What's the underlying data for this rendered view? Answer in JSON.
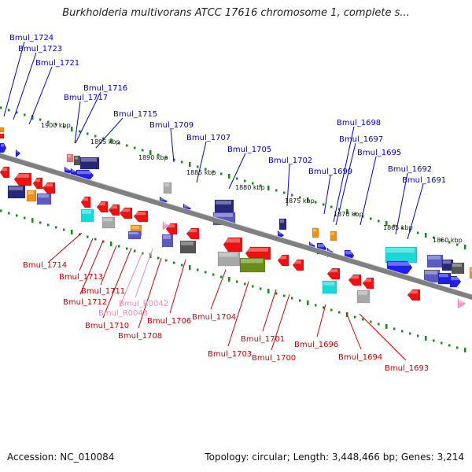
{
  "title": "Burkholderia multivorans ATCC 17616 chromosome 1, complete s...",
  "footer": {
    "accession_label": "Accession:",
    "accession_value": "NC_010084",
    "topology_label": "Topology:",
    "topology_value": "circular",
    "length_label": "Length:",
    "length_value": "3,448,466 bp",
    "genes_label": "Genes:",
    "genes_value": "3,214"
  },
  "colors": {
    "backbone": "#808080",
    "tick": "#1a8a1a",
    "forward_label": "#0000cc",
    "reverse_label": "#cc0000",
    "rna_label": "#e88ac0",
    "gene_blue": "#1f1fe6",
    "gene_red": "#ee1111",
    "gene_navy": "#28287a",
    "gene_slate": "#5a5ac0",
    "gene_cyan": "#18d8d8",
    "gene_orange": "#f09018",
    "gene_gray": "#a8a8a8",
    "gene_darkgray": "#555555",
    "gene_olive": "#6a8c1a",
    "gene_pink": "#ff99cc",
    "gene_pinkred": "#e07a7a"
  },
  "scale_labels": [
    "1900 kbp",
    "1895 kbp",
    "1890 kbp",
    "1885 kbp",
    "1880 kbp",
    "1875 kbp",
    "1870 kbp",
    "1865 kbp",
    "1860 kbp"
  ],
  "forward_genes": [
    "Bmul_1724",
    "Bmul_1723",
    "Bmul_1721",
    "Bmul_1716",
    "Bmul_1717",
    "Bmul_1715",
    "Bmul_1709",
    "Bmul_1707",
    "Bmul_1705",
    "Bmul_1702",
    "Bmul_1699",
    "Bmul_1698",
    "Bmul_1697",
    "Bmul_1695",
    "Bmul_1692",
    "Bmul_1691"
  ],
  "reverse_genes": [
    "Bmul_1714",
    "Bmul_1713",
    "Bmul_1712",
    "Bmul_1711",
    "Bmul_R0042",
    "Bmul_R0043",
    "Bmul_1710",
    "Bmul_1706",
    "Bmul_1708",
    "Bmul_1704",
    "Bmul_1703",
    "Bmul_1701",
    "Bmul_1700",
    "Bmul_1696",
    "Bmul_1694",
    "Bmul_1693"
  ],
  "rna_genes": [
    "Bmul_R0042",
    "Bmul_R0043"
  ]
}
